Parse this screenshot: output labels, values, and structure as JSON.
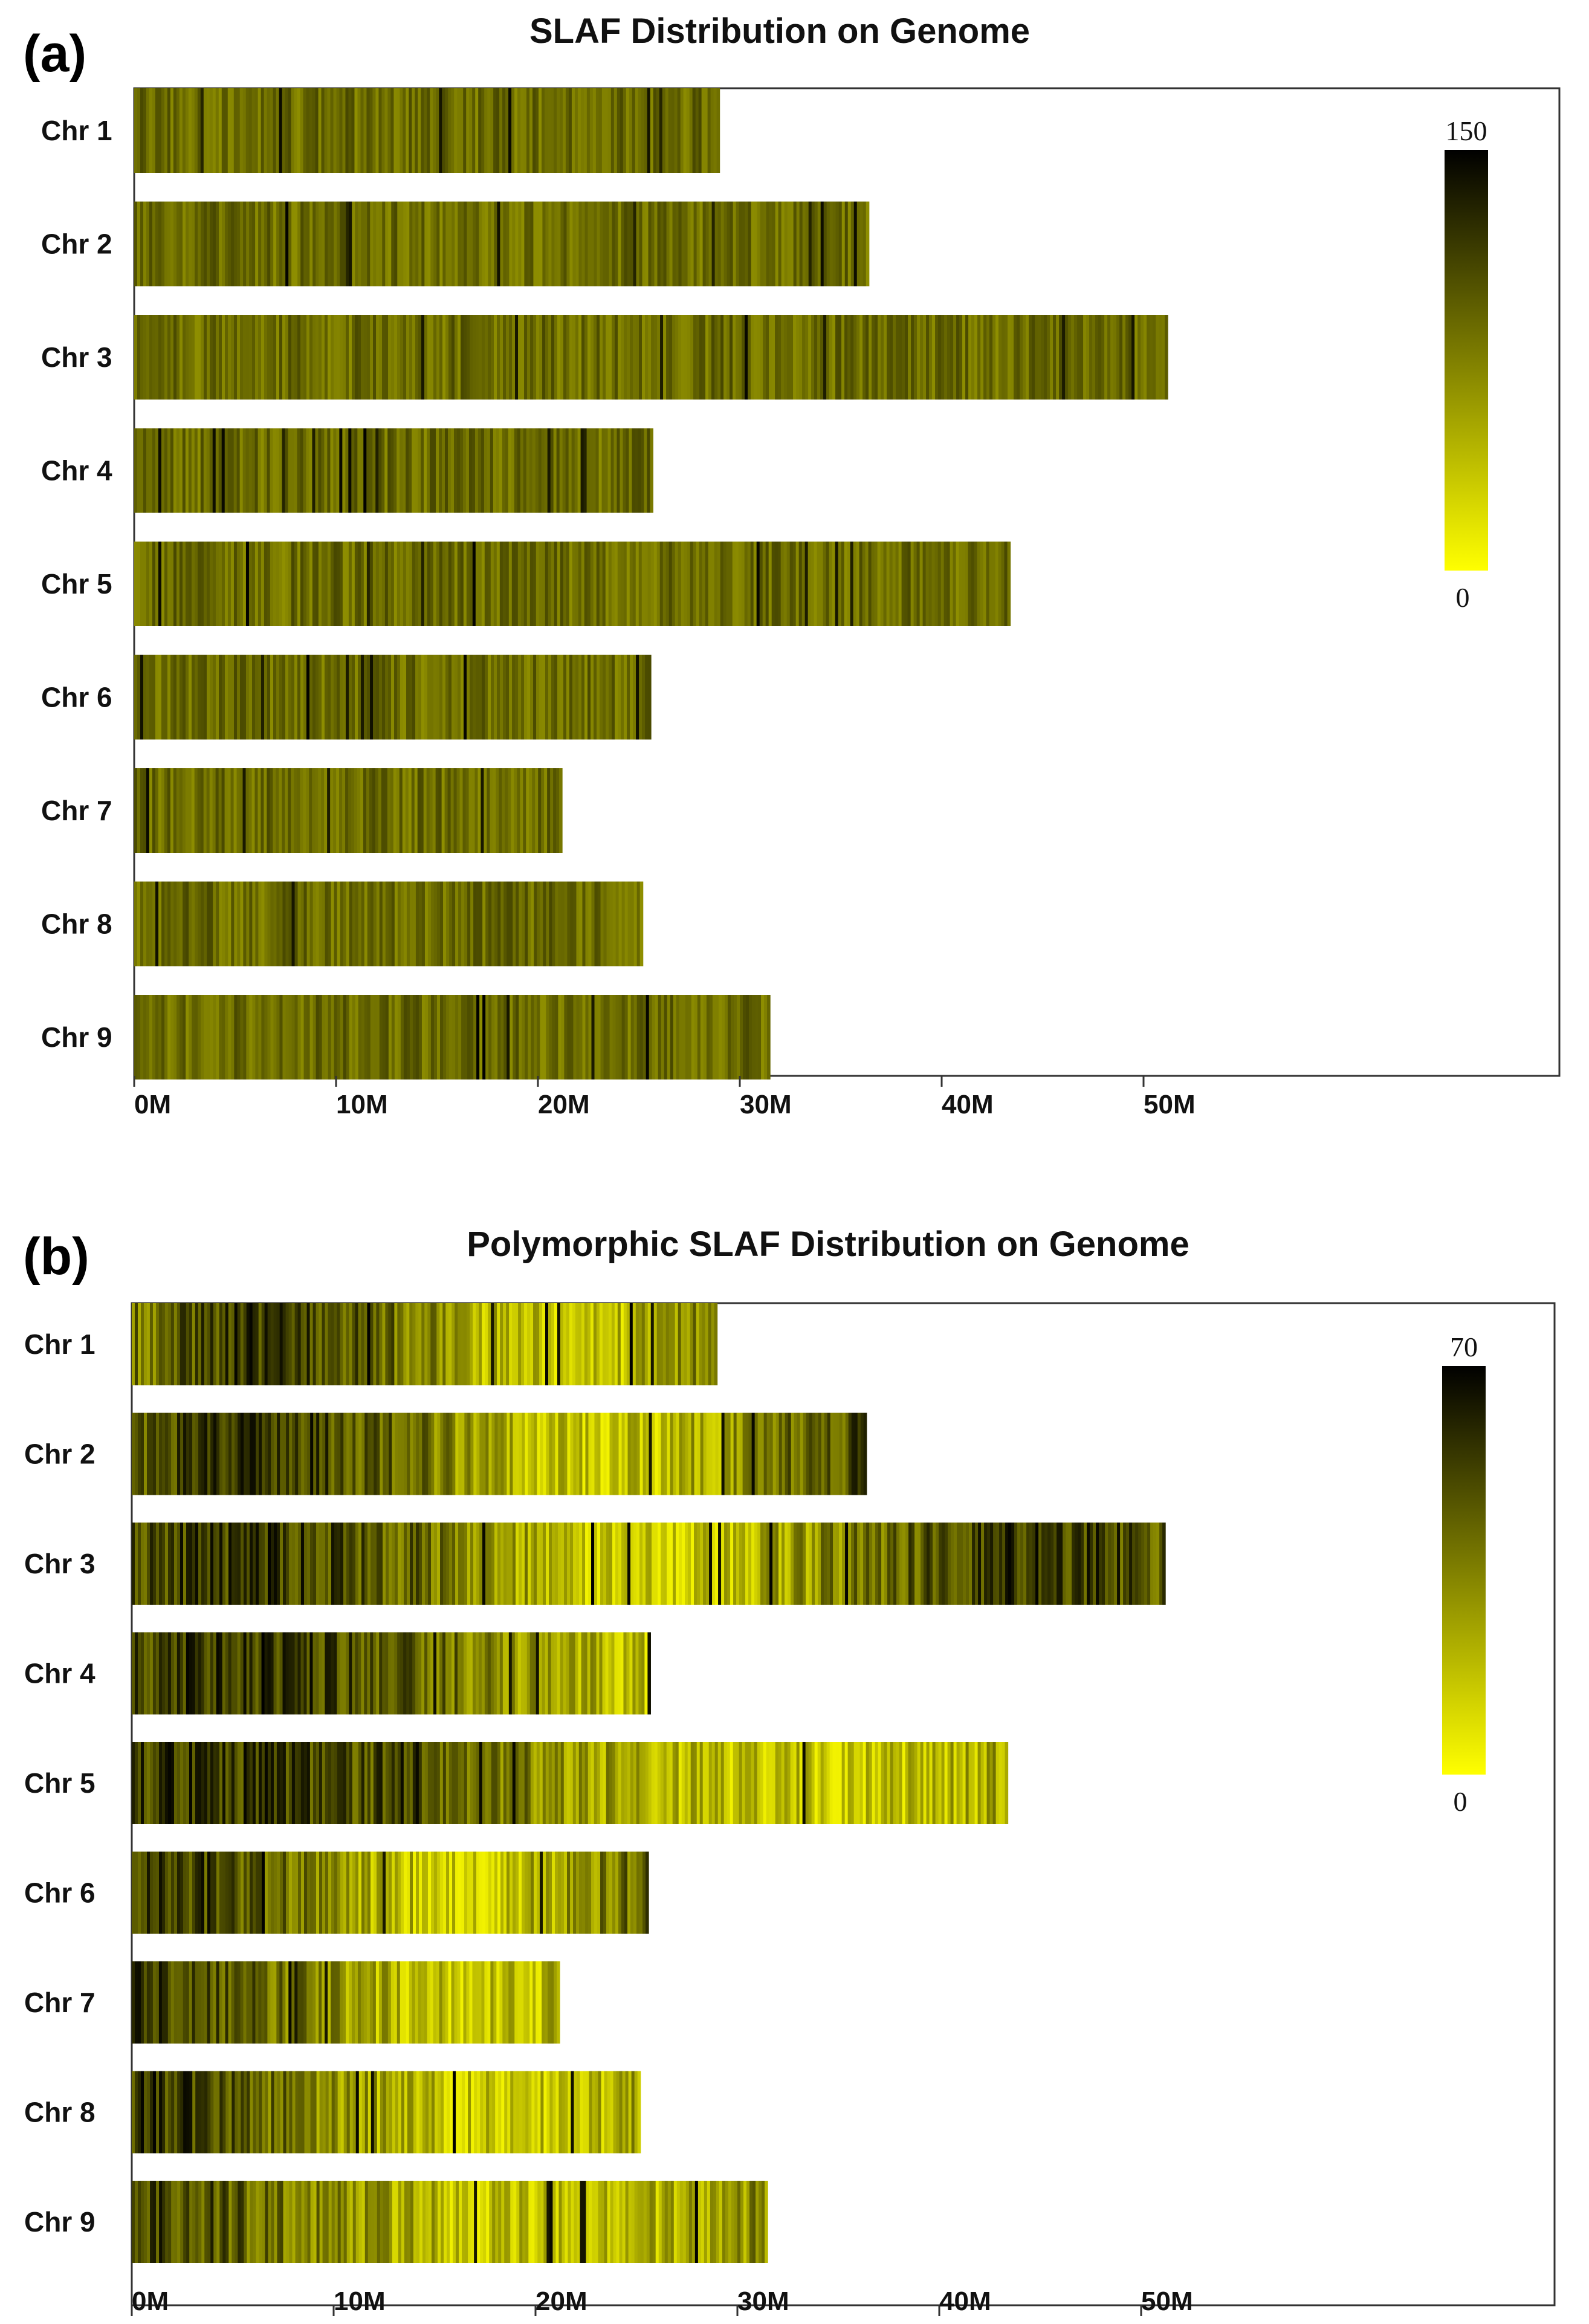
{
  "chart_data": [
    {
      "panel": "(a)",
      "type": "heatmap",
      "title": "SLAF Distribution on Genome",
      "xlabel": "",
      "ylabel": "",
      "x_ticks": [
        "0M",
        "10M",
        "20M",
        "30M",
        "40M",
        "50M"
      ],
      "x_tick_values_mb": [
        0,
        10,
        20,
        30,
        40,
        50
      ],
      "xlim_mb": [
        0,
        70
      ],
      "chromosomes": [
        {
          "name": "Chr 1",
          "length_mb": 29.0
        },
        {
          "name": "Chr 2",
          "length_mb": 36.4
        },
        {
          "name": "Chr 3",
          "length_mb": 51.2
        },
        {
          "name": "Chr 4",
          "length_mb": 25.7
        },
        {
          "name": "Chr 5",
          "length_mb": 43.4
        },
        {
          "name": "Chr 6",
          "length_mb": 25.6
        },
        {
          "name": "Chr 7",
          "length_mb": 21.2
        },
        {
          "name": "Chr 8",
          "length_mb": 25.2
        },
        {
          "name": "Chr 9",
          "length_mb": 31.5
        }
      ],
      "colorbar": {
        "min": "0",
        "max": "150",
        "colors": [
          "#ffff00",
          "#000000"
        ]
      },
      "density_character": "medium-dark olive throughout"
    },
    {
      "panel": "(b)",
      "type": "heatmap",
      "title": "Polymorphic SLAF Distribution on Genome",
      "xlabel": "",
      "ylabel": "",
      "x_ticks": [
        "0M",
        "10M",
        "20M",
        "30M",
        "40M",
        "50M"
      ],
      "x_tick_values_mb": [
        0,
        10,
        20,
        30,
        40,
        50
      ],
      "xlim_mb": [
        0,
        70
      ],
      "chromosomes": [
        {
          "name": "Chr 1",
          "length_mb": 29.0
        },
        {
          "name": "Chr 2",
          "length_mb": 36.4
        },
        {
          "name": "Chr 3",
          "length_mb": 51.2
        },
        {
          "name": "Chr 4",
          "length_mb": 25.7
        },
        {
          "name": "Chr 5",
          "length_mb": 43.4
        },
        {
          "name": "Chr 6",
          "length_mb": 25.6
        },
        {
          "name": "Chr 7",
          "length_mb": 21.2
        },
        {
          "name": "Chr 8",
          "length_mb": 25.2
        },
        {
          "name": "Chr 9",
          "length_mb": 31.5
        }
      ],
      "colorbar": {
        "min": "0",
        "max": "70",
        "colors": [
          "#ffff00",
          "#000000"
        ]
      },
      "density_character": "mixed bright yellow and dark olive"
    }
  ]
}
